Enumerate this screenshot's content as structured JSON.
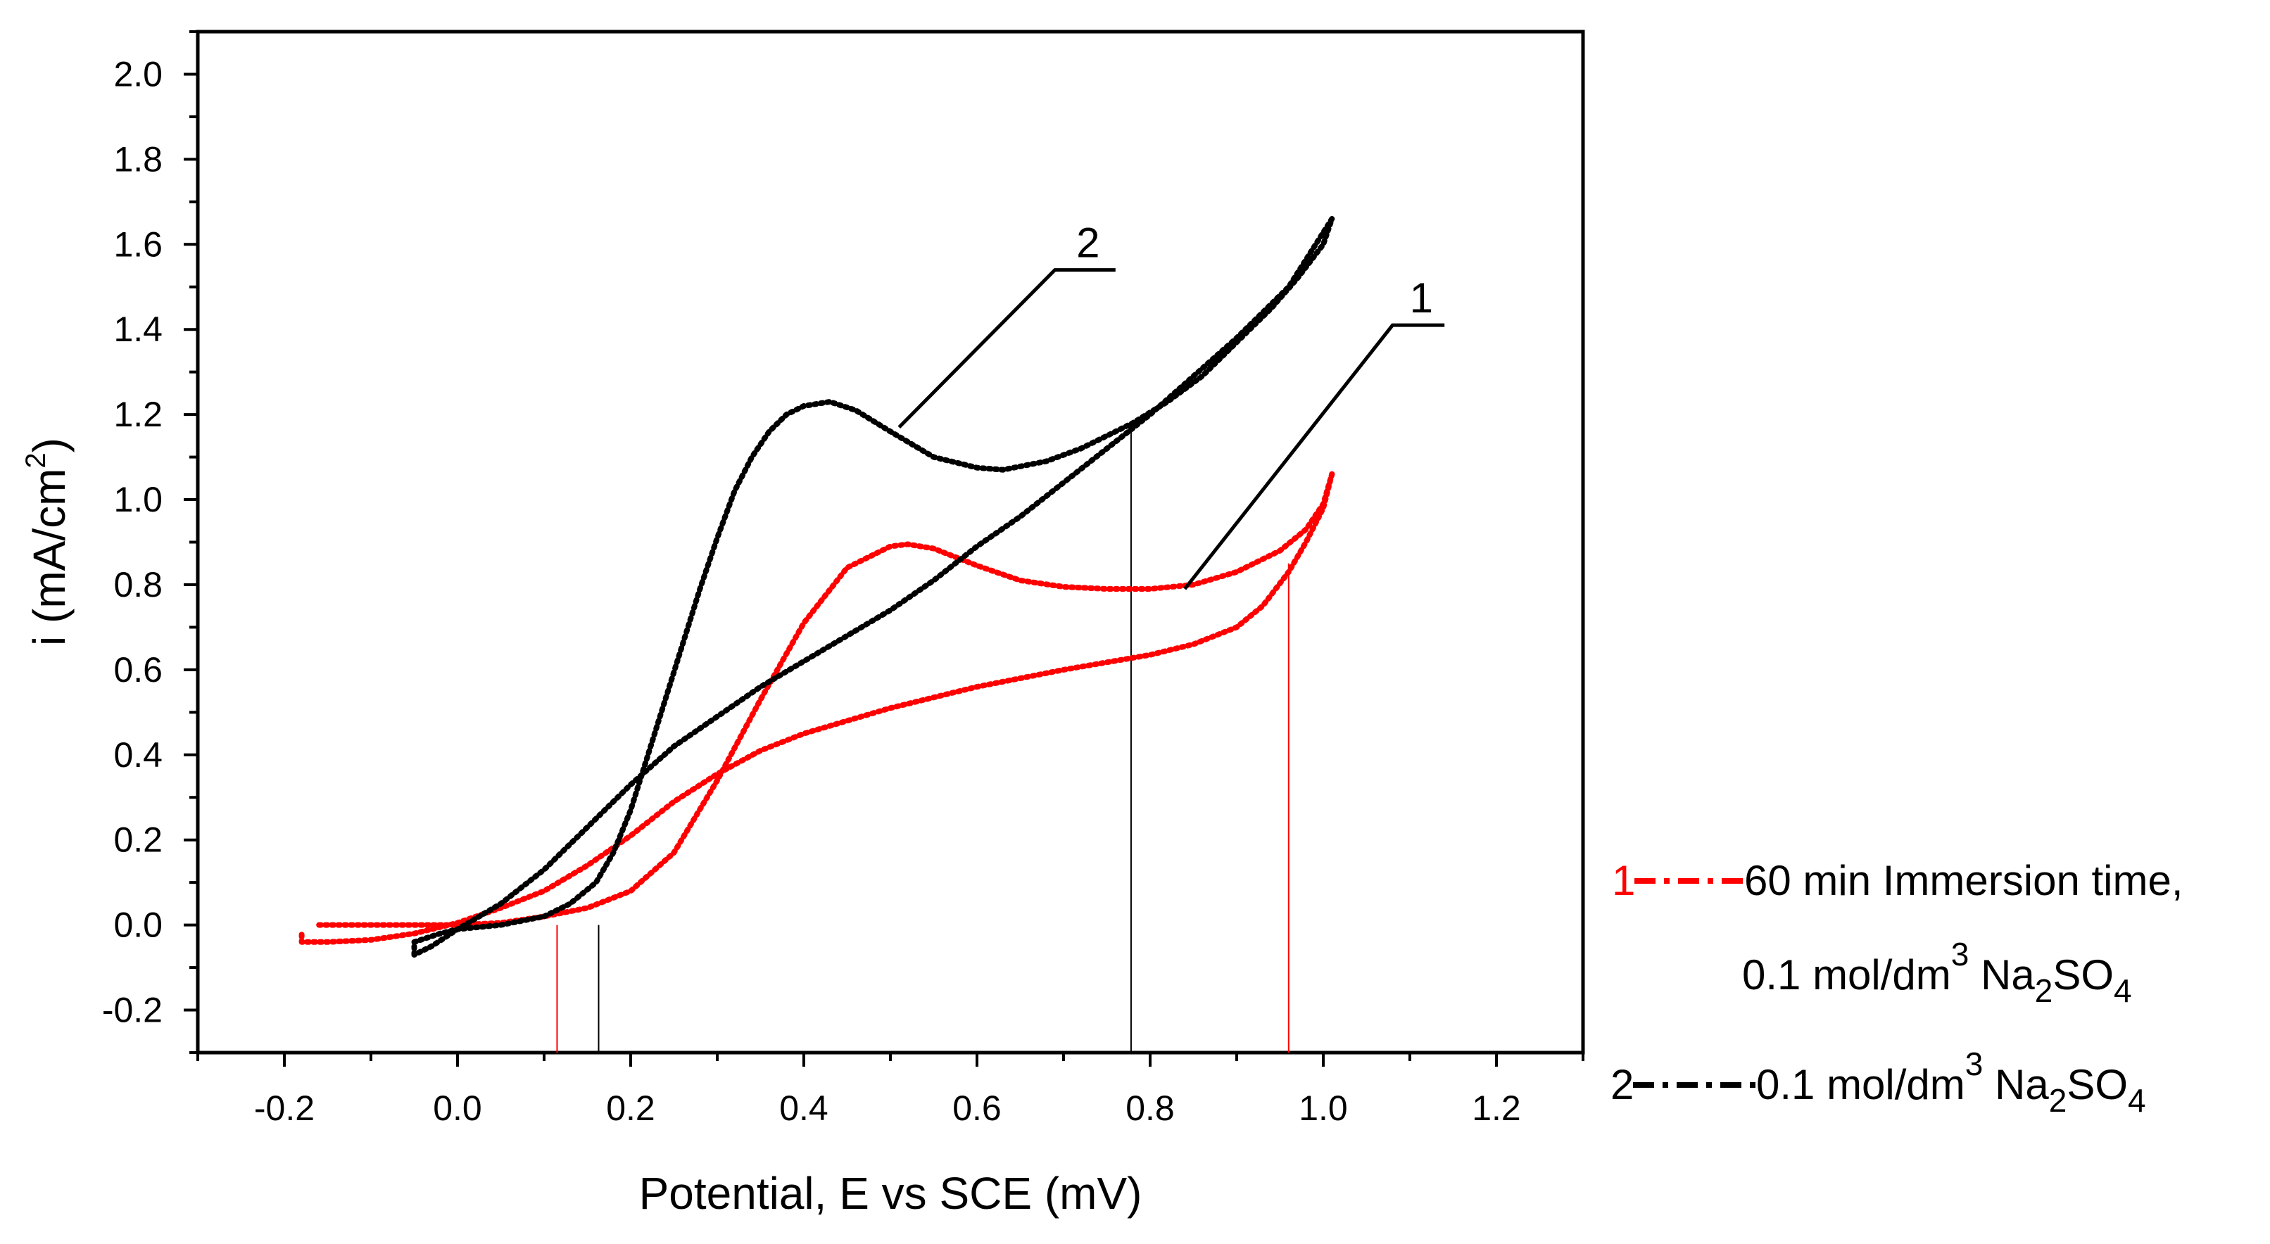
{
  "chart_data": {
    "type": "line",
    "title": "",
    "xlabel": "Potential, E vs SCE (mV)",
    "ylabel": "i (mA/cm",
    "ylabel_sup": "2",
    "ylabel_close": ")",
    "xlim": [
      -0.3,
      1.3
    ],
    "ylim": [
      -0.3,
      2.1
    ],
    "xticks": [
      -0.2,
      0.0,
      0.2,
      0.4,
      0.6,
      0.8,
      1.0,
      1.2
    ],
    "xtick_labels": [
      "-0.2",
      "0.0",
      "0.2",
      "0.4",
      "0.6",
      "0.8",
      "1.0",
      "1.2"
    ],
    "yticks": [
      -0.2,
      0.0,
      0.2,
      0.4,
      0.6,
      0.8,
      1.0,
      1.2,
      1.4,
      1.6,
      1.8,
      2.0
    ],
    "ytick_labels": [
      "-0.2",
      "0.0",
      "0.2",
      "0.4",
      "0.6",
      "0.8",
      "1.0",
      "1.2",
      "1.4",
      "1.6",
      "1.8",
      "2.0"
    ],
    "grid": false,
    "legend_position": "right-bottom",
    "series": [
      {
        "name": "60 min Immersion time, 0.1 mol/dm3 Na2SO4",
        "id": "1",
        "color": "#ff0000",
        "forward": {
          "x": [
            -0.16,
            -0.1,
            -0.05,
            0.0,
            0.05,
            0.1,
            0.15,
            0.2,
            0.25,
            0.3,
            0.35,
            0.4,
            0.45,
            0.5,
            0.52,
            0.55,
            0.6,
            0.65,
            0.7,
            0.75,
            0.8,
            0.85,
            0.9,
            0.95,
            0.98,
            1.0,
            1.01
          ],
          "y": [
            0.0,
            0.0,
            0.0,
            0.0,
            0.005,
            0.02,
            0.04,
            0.08,
            0.17,
            0.34,
            0.53,
            0.71,
            0.84,
            0.89,
            0.895,
            0.885,
            0.845,
            0.81,
            0.795,
            0.79,
            0.79,
            0.8,
            0.83,
            0.88,
            0.93,
            0.99,
            1.06
          ]
        },
        "reverse": {
          "x": [
            1.01,
            1.0,
            0.98,
            0.96,
            0.93,
            0.9,
            0.85,
            0.8,
            0.7,
            0.6,
            0.5,
            0.45,
            0.4,
            0.35,
            0.3,
            0.25,
            0.2,
            0.15,
            0.1,
            0.05,
            0.0,
            -0.05,
            -0.1,
            -0.15,
            -0.18,
            -0.18
          ],
          "y": [
            1.06,
            0.98,
            0.9,
            0.83,
            0.75,
            0.7,
            0.66,
            0.635,
            0.6,
            0.56,
            0.51,
            0.48,
            0.45,
            0.41,
            0.355,
            0.29,
            0.21,
            0.14,
            0.08,
            0.04,
            0.005,
            -0.02,
            -0.035,
            -0.04,
            -0.04,
            -0.02
          ]
        }
      },
      {
        "name": "0.1 mol/dm3 Na2SO4",
        "id": "2",
        "color": "#000000",
        "forward": {
          "x": [
            -0.05,
            -0.05,
            -0.02,
            0.0,
            0.05,
            0.1,
            0.13,
            0.16,
            0.18,
            0.2,
            0.22,
            0.24,
            0.26,
            0.28,
            0.3,
            0.32,
            0.34,
            0.36,
            0.38,
            0.4,
            0.43,
            0.46,
            0.5,
            0.55,
            0.6,
            0.63,
            0.68,
            0.72,
            0.75,
            0.78,
            0.82,
            0.86,
            0.9,
            0.94,
            0.97,
            1.0,
            1.01
          ],
          "y": [
            -0.07,
            -0.04,
            -0.02,
            -0.01,
            0.0,
            0.02,
            0.05,
            0.1,
            0.17,
            0.27,
            0.4,
            0.53,
            0.66,
            0.79,
            0.91,
            1.02,
            1.1,
            1.16,
            1.2,
            1.22,
            1.23,
            1.21,
            1.16,
            1.1,
            1.075,
            1.07,
            1.09,
            1.12,
            1.15,
            1.18,
            1.23,
            1.29,
            1.37,
            1.45,
            1.52,
            1.6,
            1.66
          ]
        },
        "reverse": {
          "x": [
            1.01,
            0.96,
            0.9,
            0.85,
            0.8,
            0.75,
            0.7,
            0.65,
            0.6,
            0.55,
            0.5,
            0.45,
            0.4,
            0.35,
            0.3,
            0.25,
            0.2,
            0.15,
            0.1,
            0.05,
            0.0,
            -0.03,
            -0.05
          ],
          "y": [
            1.66,
            1.5,
            1.38,
            1.29,
            1.2,
            1.12,
            1.04,
            0.96,
            0.89,
            0.81,
            0.74,
            0.68,
            0.62,
            0.56,
            0.49,
            0.42,
            0.33,
            0.23,
            0.13,
            0.05,
            -0.01,
            -0.05,
            -0.07
          ]
        }
      }
    ],
    "vertical_markers": [
      {
        "x": 0.115,
        "y": 0.0,
        "color": "#ff0000"
      },
      {
        "x": 0.96,
        "y": 0.85,
        "color": "#ff0000"
      },
      {
        "x": 0.163,
        "y": 0.0,
        "color": "#000000"
      },
      {
        "x": 0.778,
        "y": 1.17,
        "color": "#000000"
      }
    ],
    "annotations": [
      {
        "text": "2",
        "target": [
          0.51,
          1.17
        ],
        "elbow": [
          0.69,
          1.54
        ],
        "shelf_end": [
          0.76,
          1.54
        ]
      },
      {
        "text": "1",
        "target": [
          0.84,
          0.79
        ],
        "elbow": [
          1.08,
          1.41
        ],
        "shelf_end": [
          1.14,
          1.41
        ]
      }
    ],
    "legend": [
      {
        "num": "1",
        "color": "#ff0000",
        "line1": "60 min Immersion time,",
        "line2_pre": "0.1 mol/dm",
        "line2_sup": "3",
        "line2_mid": " Na",
        "line2_sub1": "2",
        "line2_mid2": "SO",
        "line2_sub2": "4"
      },
      {
        "num": "2",
        "color": "#000000",
        "line1_pre": "0.1 mol/dm",
        "line1_sup": "3",
        "line1_mid": " Na",
        "line1_sub1": "2",
        "line1_mid2": "SO",
        "line1_sub2": "4"
      }
    ]
  }
}
